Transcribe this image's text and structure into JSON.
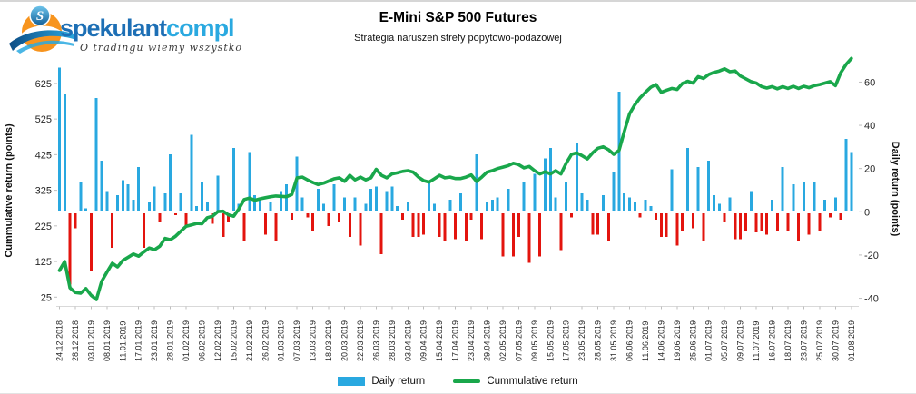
{
  "logo": {
    "brand_part1": "spekulant",
    "brand_part2": "compl",
    "tagline": "O tradingu wiemy wszystko"
  },
  "colors": {
    "bar_positive": "#29a8e0",
    "bar_negative": "#e3140e",
    "line": "#19a74b",
    "axis_line": "#d9d9d9",
    "tick_mark": "#bfbfbf",
    "tick_text": "#262626",
    "brand_dark_blue": "#1d6fb5",
    "brand_light_blue": "#2aa9e0",
    "brand_orange": "#f7941e"
  },
  "chart_data": {
    "type": "bar",
    "title": "E-Mini S&P 500 Futures",
    "subtitle": "Strategia naruszeń strefy popytowo-podażowej",
    "grid": "off",
    "legend_position": "bottom",
    "left_axis": {
      "label": "Cummulative return (points)",
      "ticks": [
        625,
        525,
        425,
        325,
        225,
        125,
        25
      ],
      "range": [
        25,
        695
      ]
    },
    "right_axis": {
      "label": "Daily return (points)",
      "ticks": [
        60,
        40,
        20,
        0,
        -20,
        -40
      ],
      "range": [
        -44,
        66
      ]
    },
    "x_tick_every": 3,
    "x_tick_labels": [
      "24.12.2018",
      "28.12.2018",
      "03.01.2019",
      "08.01.2019",
      "11.01.2019",
      "17.01.2019",
      "23.01.2019",
      "28.01.2019",
      "01.02.2019",
      "06.02.2019",
      "12.02.2019",
      "15.02.2019",
      "21.02.2019",
      "26.02.2019",
      "01.03.2019",
      "07.03.2019",
      "13.03.2019",
      "18.03.2019",
      "20.03.2019",
      "22.03.2019",
      "26.03.2019",
      "28.03.2019",
      "03.04.2019",
      "09.04.2019",
      "15.04.2019",
      "17.04.2019",
      "23.04.2019",
      "29.04.2019",
      "02.05.2019",
      "07.05.2019",
      "09.05.2019",
      "15.05.2019",
      "17.05.2019",
      "23.05.2019",
      "28.05.2019",
      "31.05.2019",
      "06.06.2019",
      "11.06.2019",
      "14.06.2019",
      "19.06.2019",
      "25.06.2019",
      "01.07.2019",
      "05.07.2019",
      "09.07.2019",
      "11.07.2019",
      "16.07.2019",
      "18.07.2019",
      "23.07.2019",
      "25.07.2019",
      "30.07.2019",
      "01.08.2019"
    ],
    "series": [
      {
        "name": "Daily return",
        "type": "bar",
        "axis": "right",
        "color": "#29a8e0",
        "negative_color": "#e3140e",
        "values": [
          66,
          54,
          -33,
          -7,
          13,
          1,
          -27,
          52,
          23,
          9,
          -16,
          7,
          14,
          12,
          5,
          20,
          -16,
          4,
          11,
          -4,
          8,
          26,
          -1,
          8,
          -6,
          35,
          2,
          13,
          4,
          -5,
          16,
          -11,
          -4,
          29,
          3,
          -13,
          27,
          7,
          5,
          -10,
          4,
          -13,
          9,
          12,
          -3,
          25,
          6,
          -2,
          -8,
          10,
          3,
          -6,
          12,
          -4,
          6,
          -11,
          6,
          -15,
          3,
          10,
          11,
          -19,
          9,
          11,
          2,
          -3,
          4,
          -11,
          -11,
          -10,
          13,
          3,
          -11,
          -13,
          5,
          -12,
          8,
          -13,
          -3,
          26,
          -12,
          4,
          5,
          6,
          -20,
          10,
          -20,
          -11,
          13,
          -23,
          17,
          -20,
          24,
          29,
          6,
          -17,
          13,
          -2,
          31,
          8,
          5,
          -10,
          -10,
          7,
          -13,
          18,
          55,
          8,
          6,
          4,
          -2,
          5,
          2,
          -3,
          -11,
          -11,
          19,
          -15,
          -8,
          29,
          -7,
          20,
          -13,
          23,
          7,
          3,
          -4,
          6,
          -12,
          -12,
          -8,
          9,
          -9,
          -8,
          -10,
          5,
          -8,
          20,
          -8,
          12,
          -13,
          13,
          -10,
          13,
          -8,
          5,
          -2,
          6,
          -3,
          33,
          27
        ]
      },
      {
        "name": "Cummulative return",
        "type": "line",
        "axis": "left",
        "color": "#19a74b",
        "values": [
          100,
          125,
          51,
          38,
          36,
          49,
          30,
          18,
          69,
          95,
          120,
          110,
          128,
          137,
          146,
          140,
          152,
          163,
          158,
          168,
          190,
          186,
          196,
          210,
          224,
          228,
          232,
          231,
          248,
          252,
          265,
          266,
          256,
          252,
          273,
          299,
          303,
          297,
          301,
          304,
          307,
          309,
          308,
          307,
          313,
          360,
          362,
          354,
          347,
          341,
          345,
          351,
          357,
          360,
          350,
          367,
          354,
          362,
          354,
          360,
          384,
          367,
          360,
          371,
          374,
          378,
          380,
          376,
          362,
          352,
          348,
          357,
          367,
          360,
          362,
          358,
          358,
          362,
          368,
          350,
          362,
          376,
          380,
          386,
          390,
          394,
          401,
          397,
          388,
          392,
          380,
          371,
          377,
          371,
          380,
          371,
          401,
          426,
          430,
          422,
          413,
          430,
          443,
          447,
          439,
          426,
          437,
          490,
          540,
          565,
          585,
          600,
          614,
          622,
          600,
          606,
          611,
          608,
          625,
          631,
          626,
          644,
          639,
          650,
          656,
          660,
          666,
          658,
          660,
          646,
          638,
          630,
          626,
          616,
          612,
          616,
          610,
          616,
          611,
          617,
          611,
          617,
          613,
          619,
          622,
          626,
          630,
          619,
          655,
          678,
          695
        ]
      }
    ]
  }
}
